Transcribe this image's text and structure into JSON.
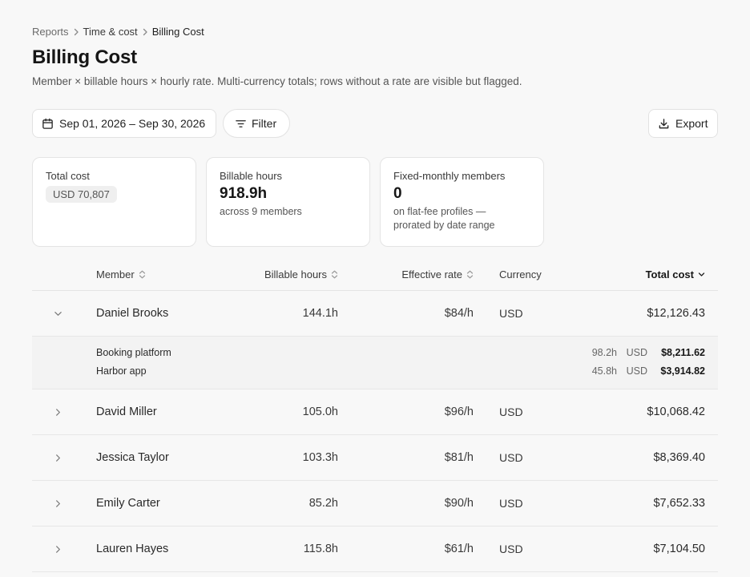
{
  "breadcrumb": [
    "Reports",
    "Time & cost",
    "Billing Cost"
  ],
  "page": {
    "title": "Billing Cost",
    "subtitle": "Member × billable hours × hourly rate. Multi-currency totals; rows without a rate are visible but flagged."
  },
  "toolbar": {
    "date_range": "Sep 01, 2026 – Sep 30, 2026",
    "filter_label": "Filter",
    "export_label": "Export"
  },
  "cards": {
    "total_cost": {
      "label": "Total cost",
      "chip": "USD 70,807"
    },
    "billable_hours": {
      "label": "Billable hours",
      "value": "918.9h",
      "note": "across 9 members"
    },
    "fixed_monthly": {
      "label": "Fixed-monthly members",
      "value": "0",
      "note_line1": "on flat-fee profiles —",
      "note_line2": "prorated by date range"
    }
  },
  "table": {
    "headers": {
      "member": "Member",
      "hours": "Billable hours",
      "rate": "Effective rate",
      "currency": "Currency",
      "total": "Total cost"
    },
    "rows": [
      {
        "member": "Daniel Brooks",
        "hours": "144.1h",
        "rate": "$84/h",
        "currency": "USD",
        "total": "$12,126.43",
        "expanded": true,
        "projects": [
          {
            "name": "Booking platform",
            "hours": "98.2h",
            "currency": "USD",
            "total": "$8,211.62"
          },
          {
            "name": "Harbor app",
            "hours": "45.8h",
            "currency": "USD",
            "total": "$3,914.82"
          }
        ]
      },
      {
        "member": "David Miller",
        "hours": "105.0h",
        "rate": "$96/h",
        "currency": "USD",
        "total": "$10,068.42"
      },
      {
        "member": "Jessica Taylor",
        "hours": "103.3h",
        "rate": "$81/h",
        "currency": "USD",
        "total": "$8,369.40"
      },
      {
        "member": "Emily Carter",
        "hours": "85.2h",
        "rate": "$90/h",
        "currency": "USD",
        "total": "$7,652.33"
      },
      {
        "member": "Lauren Hayes",
        "hours": "115.8h",
        "rate": "$61/h",
        "currency": "USD",
        "total": "$7,104.50"
      }
    ]
  },
  "colors": {
    "background": "#f8f8f8",
    "card_border": "#e4e4e4",
    "subrow_bg": "#f3f3f3"
  },
  "icons": [
    "chevron-right-icon",
    "calendar-icon",
    "filter-icon",
    "download-icon",
    "sort-icon",
    "sort-desc-icon",
    "chevron-down-icon"
  ]
}
